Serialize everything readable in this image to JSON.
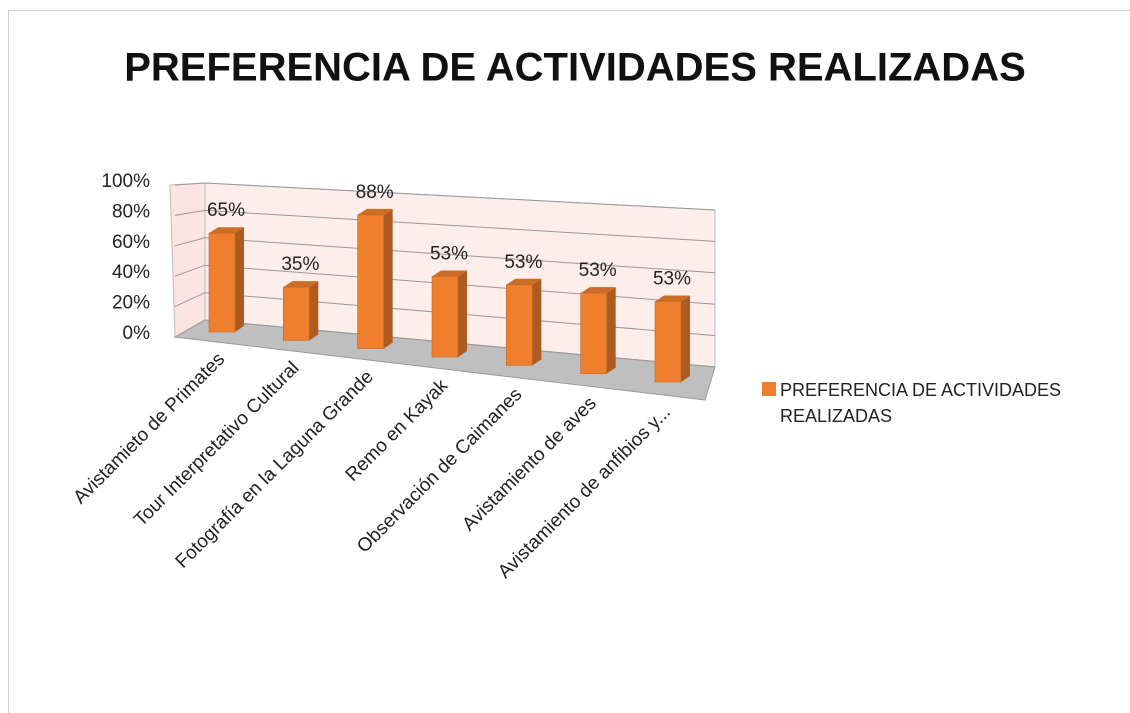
{
  "chart_data": {
    "type": "bar3d",
    "title": "PREFERENCIA DE ACTIVIDADES REALIZADAS",
    "categories": [
      "Avistamieto de Primates",
      "Tour Interpretativo Cultural",
      "Fotografía en la Laguna Grande",
      "Remo en Kayak",
      "Observación de Caimanes",
      "Avistamiento de aves",
      "Avistamiento de anfibios y..."
    ],
    "series": [
      {
        "name": "PREFERENCIA DE ACTIVIDADES REALIZADAS",
        "color": "#f07f2d",
        "values": [
          65,
          35,
          88,
          53,
          53,
          53,
          53
        ],
        "value_labels": [
          "65%",
          "35%",
          "88%",
          "53%",
          "53%",
          "53%",
          "53%"
        ]
      }
    ],
    "ylim": [
      0,
      100
    ],
    "yticks": [
      {
        "value": 0,
        "label": "0%"
      },
      {
        "value": 20,
        "label": "20%"
      },
      {
        "value": 40,
        "label": "40%"
      },
      {
        "value": 60,
        "label": "60%"
      },
      {
        "value": 80,
        "label": "80%"
      },
      {
        "value": 100,
        "label": "100%"
      }
    ],
    "grid": true,
    "legend": "right"
  }
}
